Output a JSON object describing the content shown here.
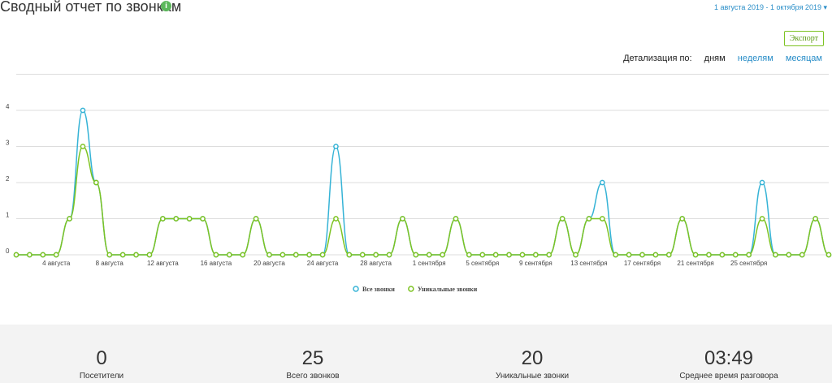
{
  "header": {
    "title": "Сводный отчет по звонкам",
    "date_range": "1 августа 2019 - 1 октября 2019",
    "export": "Экспорт",
    "detail_label": "Детализация по:",
    "detail_options": [
      "дням",
      "неделям",
      "месяцам"
    ]
  },
  "chart_data": {
    "type": "line",
    "categories": [
      null,
      null,
      null,
      "4 августа",
      null,
      null,
      null,
      "8 августа",
      null,
      null,
      null,
      "12 августа",
      null,
      null,
      null,
      "16 августа",
      null,
      null,
      null,
      "20 августа",
      null,
      null,
      null,
      "24 августа",
      null,
      null,
      null,
      "28 августа",
      null,
      null,
      null,
      "1 сентября",
      null,
      null,
      null,
      "5 сентября",
      null,
      null,
      null,
      "9 сентября",
      null,
      null,
      null,
      "13 сентября",
      null,
      null,
      null,
      "17 сентября",
      null,
      null,
      null,
      "21 сентября",
      null,
      null,
      null,
      "25 сентября",
      null,
      null,
      null,
      null,
      null,
      null
    ],
    "series": [
      {
        "name": "Все звонки",
        "color": "#35b3d6",
        "values": [
          0,
          0,
          0,
          0,
          1,
          4,
          2,
          0,
          0,
          0,
          0,
          1,
          1,
          1,
          1,
          0,
          0,
          0,
          1,
          0,
          0,
          0,
          0,
          0,
          3,
          0,
          0,
          0,
          0,
          1,
          0,
          0,
          0,
          1,
          0,
          0,
          0,
          0,
          0,
          0,
          0,
          1,
          0,
          1,
          2,
          0,
          0,
          0,
          0,
          0,
          1,
          0,
          0,
          0,
          0,
          0,
          2,
          0,
          0,
          0,
          1,
          0
        ]
      },
      {
        "name": "Уникальные звонки",
        "color": "#7dc322",
        "values": [
          0,
          0,
          0,
          0,
          1,
          3,
          2,
          0,
          0,
          0,
          0,
          1,
          1,
          1,
          1,
          0,
          0,
          0,
          1,
          0,
          0,
          0,
          0,
          0,
          1,
          0,
          0,
          0,
          0,
          1,
          0,
          0,
          0,
          1,
          0,
          0,
          0,
          0,
          0,
          0,
          0,
          1,
          0,
          1,
          1,
          0,
          0,
          0,
          0,
          0,
          1,
          0,
          0,
          0,
          0,
          0,
          1,
          0,
          0,
          0,
          1,
          0
        ]
      }
    ],
    "ylim": [
      0,
      5
    ],
    "yticks": [
      0,
      1,
      2,
      3,
      4
    ],
    "grid": true
  },
  "stats": [
    {
      "value": "0",
      "label": "Посетители"
    },
    {
      "value": "25",
      "label": "Всего звонков"
    },
    {
      "value": "20",
      "label": "Уникальные звонки"
    },
    {
      "value": "03:49",
      "label": "Среднее время разговора"
    }
  ]
}
